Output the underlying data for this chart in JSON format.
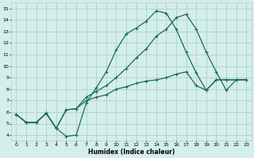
{
  "xlabel": "Humidex (Indice chaleur)",
  "bg_color": "#d4eeeb",
  "grid_color": "#aecfcb",
  "line_color": "#1a6b5a",
  "xlim": [
    -0.5,
    23.5
  ],
  "ylim": [
    3.5,
    15.5
  ],
  "xticks": [
    0,
    1,
    2,
    3,
    4,
    5,
    6,
    7,
    8,
    9,
    10,
    11,
    12,
    13,
    14,
    15,
    16,
    17,
    18,
    19,
    20,
    21,
    22,
    23
  ],
  "yticks": [
    4,
    5,
    6,
    7,
    8,
    9,
    10,
    11,
    12,
    13,
    14,
    15
  ],
  "line1_x": [
    0,
    1,
    2,
    3,
    4,
    5,
    6,
    7,
    8,
    9,
    10,
    11,
    12,
    13,
    14,
    15,
    16,
    17,
    18,
    19,
    20,
    21,
    22,
    23
  ],
  "line1_y": [
    5.8,
    5.1,
    5.1,
    5.9,
    4.6,
    3.9,
    4.0,
    6.8,
    8.1,
    9.5,
    11.4,
    12.8,
    13.3,
    13.9,
    14.8,
    14.6,
    13.2,
    11.2,
    9.4,
    7.9,
    8.8,
    8.8,
    8.8,
    8.8
  ],
  "line2_x": [
    0,
    1,
    2,
    3,
    4,
    5,
    6,
    7,
    8,
    9,
    10,
    11,
    12,
    13,
    14,
    15,
    16,
    17,
    18,
    19,
    20,
    21,
    22,
    23
  ],
  "line2_y": [
    5.8,
    5.1,
    5.1,
    5.9,
    4.6,
    6.2,
    6.3,
    7.0,
    7.3,
    7.5,
    8.0,
    8.2,
    8.5,
    8.7,
    8.8,
    9.0,
    9.3,
    9.5,
    8.3,
    7.9,
    8.8,
    8.8,
    8.8,
    8.8
  ],
  "line3_x": [
    0,
    1,
    2,
    3,
    4,
    5,
    6,
    7,
    8,
    9,
    10,
    11,
    12,
    13,
    14,
    15,
    16,
    17,
    18,
    19,
    20,
    21,
    22,
    23
  ],
  "line3_y": [
    5.8,
    5.1,
    5.1,
    5.9,
    4.6,
    6.2,
    6.3,
    7.3,
    7.8,
    8.3,
    9.0,
    9.8,
    10.7,
    11.5,
    12.6,
    13.2,
    14.2,
    14.5,
    13.2,
    11.2,
    9.5,
    7.9,
    8.8,
    8.8
  ],
  "marker_size": 2.5,
  "line_width": 0.9,
  "tick_fontsize": 4.5,
  "xlabel_fontsize": 5.5
}
